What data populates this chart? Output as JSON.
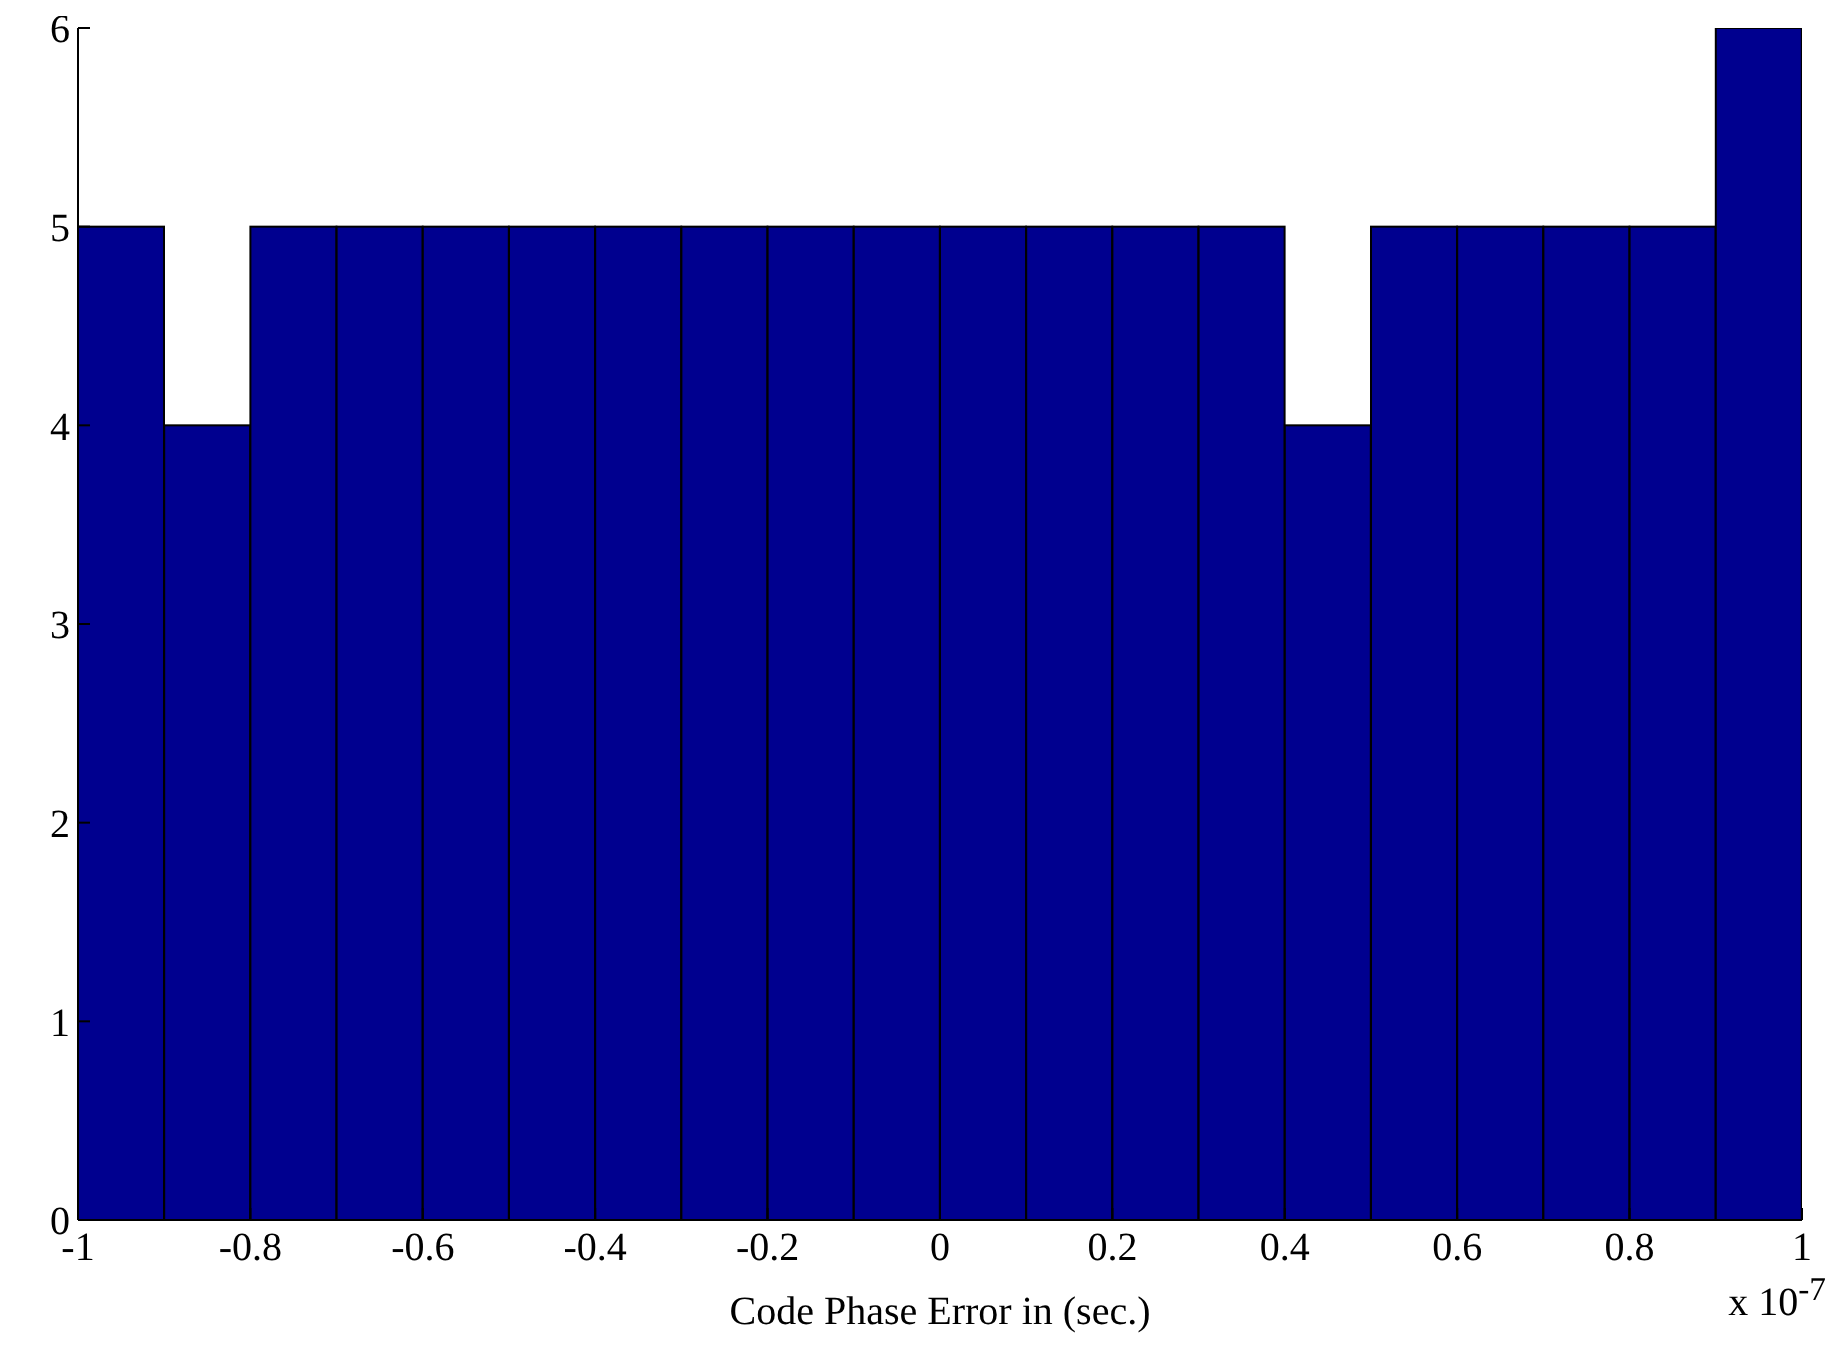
{
  "chart_data": {
    "type": "histogram",
    "xlabel": "Code Phase Error in (sec.)",
    "annotations": [
      "x 10$^{-7}$"
    ],
    "bins": [
      -1,
      -0.9,
      -0.8,
      -0.7,
      -0.6,
      -0.5,
      -0.4,
      -0.3,
      -0.2,
      -0.1,
      0,
      0.1,
      0.2,
      0.3,
      0.4,
      0.5,
      0.6,
      0.7,
      0.8,
      0.9,
      1
    ],
    "values": [
      5,
      4,
      5,
      5,
      5,
      5,
      5,
      5,
      5,
      5,
      5,
      5,
      5,
      5,
      4,
      5,
      5,
      5,
      5,
      6
    ],
    "color": "#00008f",
    "xlim": [
      -1,
      1
    ],
    "xticks": [
      -1,
      -0.8,
      -0.6,
      -0.4,
      -0.2,
      0,
      0.2,
      0.4,
      0.6,
      0.8,
      1
    ],
    "ylim": [
      0,
      6
    ],
    "yticks": [
      0,
      1,
      2,
      3,
      4,
      5,
      6
    ],
    "grid": false,
    "legend": false
  }
}
